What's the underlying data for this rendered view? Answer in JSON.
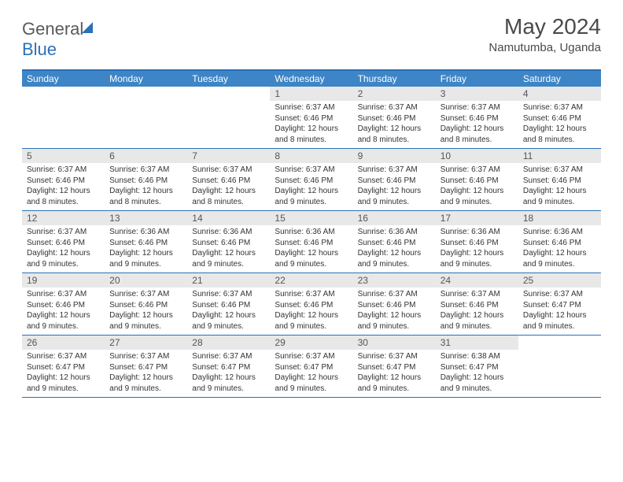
{
  "logo": {
    "text_gray": "General",
    "text_blue": "Blue"
  },
  "header": {
    "month_title": "May 2024",
    "location": "Namutumba, Uganda"
  },
  "colors": {
    "brand_blue": "#2a71b8",
    "header_bar": "#3d85c6",
    "day_num_bg": "#e8e8e8",
    "text": "#333333",
    "muted": "#5a5a5a"
  },
  "weekdays": [
    "Sunday",
    "Monday",
    "Tuesday",
    "Wednesday",
    "Thursday",
    "Friday",
    "Saturday"
  ],
  "weeks": [
    [
      {
        "num": "",
        "lines": [
          "",
          "",
          "",
          ""
        ]
      },
      {
        "num": "",
        "lines": [
          "",
          "",
          "",
          ""
        ]
      },
      {
        "num": "",
        "lines": [
          "",
          "",
          "",
          ""
        ]
      },
      {
        "num": "1",
        "lines": [
          "Sunrise: 6:37 AM",
          "Sunset: 6:46 PM",
          "Daylight: 12 hours",
          "and 8 minutes."
        ]
      },
      {
        "num": "2",
        "lines": [
          "Sunrise: 6:37 AM",
          "Sunset: 6:46 PM",
          "Daylight: 12 hours",
          "and 8 minutes."
        ]
      },
      {
        "num": "3",
        "lines": [
          "Sunrise: 6:37 AM",
          "Sunset: 6:46 PM",
          "Daylight: 12 hours",
          "and 8 minutes."
        ]
      },
      {
        "num": "4",
        "lines": [
          "Sunrise: 6:37 AM",
          "Sunset: 6:46 PM",
          "Daylight: 12 hours",
          "and 8 minutes."
        ]
      }
    ],
    [
      {
        "num": "5",
        "lines": [
          "Sunrise: 6:37 AM",
          "Sunset: 6:46 PM",
          "Daylight: 12 hours",
          "and 8 minutes."
        ]
      },
      {
        "num": "6",
        "lines": [
          "Sunrise: 6:37 AM",
          "Sunset: 6:46 PM",
          "Daylight: 12 hours",
          "and 8 minutes."
        ]
      },
      {
        "num": "7",
        "lines": [
          "Sunrise: 6:37 AM",
          "Sunset: 6:46 PM",
          "Daylight: 12 hours",
          "and 8 minutes."
        ]
      },
      {
        "num": "8",
        "lines": [
          "Sunrise: 6:37 AM",
          "Sunset: 6:46 PM",
          "Daylight: 12 hours",
          "and 9 minutes."
        ]
      },
      {
        "num": "9",
        "lines": [
          "Sunrise: 6:37 AM",
          "Sunset: 6:46 PM",
          "Daylight: 12 hours",
          "and 9 minutes."
        ]
      },
      {
        "num": "10",
        "lines": [
          "Sunrise: 6:37 AM",
          "Sunset: 6:46 PM",
          "Daylight: 12 hours",
          "and 9 minutes."
        ]
      },
      {
        "num": "11",
        "lines": [
          "Sunrise: 6:37 AM",
          "Sunset: 6:46 PM",
          "Daylight: 12 hours",
          "and 9 minutes."
        ]
      }
    ],
    [
      {
        "num": "12",
        "lines": [
          "Sunrise: 6:37 AM",
          "Sunset: 6:46 PM",
          "Daylight: 12 hours",
          "and 9 minutes."
        ]
      },
      {
        "num": "13",
        "lines": [
          "Sunrise: 6:36 AM",
          "Sunset: 6:46 PM",
          "Daylight: 12 hours",
          "and 9 minutes."
        ]
      },
      {
        "num": "14",
        "lines": [
          "Sunrise: 6:36 AM",
          "Sunset: 6:46 PM",
          "Daylight: 12 hours",
          "and 9 minutes."
        ]
      },
      {
        "num": "15",
        "lines": [
          "Sunrise: 6:36 AM",
          "Sunset: 6:46 PM",
          "Daylight: 12 hours",
          "and 9 minutes."
        ]
      },
      {
        "num": "16",
        "lines": [
          "Sunrise: 6:36 AM",
          "Sunset: 6:46 PM",
          "Daylight: 12 hours",
          "and 9 minutes."
        ]
      },
      {
        "num": "17",
        "lines": [
          "Sunrise: 6:36 AM",
          "Sunset: 6:46 PM",
          "Daylight: 12 hours",
          "and 9 minutes."
        ]
      },
      {
        "num": "18",
        "lines": [
          "Sunrise: 6:36 AM",
          "Sunset: 6:46 PM",
          "Daylight: 12 hours",
          "and 9 minutes."
        ]
      }
    ],
    [
      {
        "num": "19",
        "lines": [
          "Sunrise: 6:37 AM",
          "Sunset: 6:46 PM",
          "Daylight: 12 hours",
          "and 9 minutes."
        ]
      },
      {
        "num": "20",
        "lines": [
          "Sunrise: 6:37 AM",
          "Sunset: 6:46 PM",
          "Daylight: 12 hours",
          "and 9 minutes."
        ]
      },
      {
        "num": "21",
        "lines": [
          "Sunrise: 6:37 AM",
          "Sunset: 6:46 PM",
          "Daylight: 12 hours",
          "and 9 minutes."
        ]
      },
      {
        "num": "22",
        "lines": [
          "Sunrise: 6:37 AM",
          "Sunset: 6:46 PM",
          "Daylight: 12 hours",
          "and 9 minutes."
        ]
      },
      {
        "num": "23",
        "lines": [
          "Sunrise: 6:37 AM",
          "Sunset: 6:46 PM",
          "Daylight: 12 hours",
          "and 9 minutes."
        ]
      },
      {
        "num": "24",
        "lines": [
          "Sunrise: 6:37 AM",
          "Sunset: 6:46 PM",
          "Daylight: 12 hours",
          "and 9 minutes."
        ]
      },
      {
        "num": "25",
        "lines": [
          "Sunrise: 6:37 AM",
          "Sunset: 6:47 PM",
          "Daylight: 12 hours",
          "and 9 minutes."
        ]
      }
    ],
    [
      {
        "num": "26",
        "lines": [
          "Sunrise: 6:37 AM",
          "Sunset: 6:47 PM",
          "Daylight: 12 hours",
          "and 9 minutes."
        ]
      },
      {
        "num": "27",
        "lines": [
          "Sunrise: 6:37 AM",
          "Sunset: 6:47 PM",
          "Daylight: 12 hours",
          "and 9 minutes."
        ]
      },
      {
        "num": "28",
        "lines": [
          "Sunrise: 6:37 AM",
          "Sunset: 6:47 PM",
          "Daylight: 12 hours",
          "and 9 minutes."
        ]
      },
      {
        "num": "29",
        "lines": [
          "Sunrise: 6:37 AM",
          "Sunset: 6:47 PM",
          "Daylight: 12 hours",
          "and 9 minutes."
        ]
      },
      {
        "num": "30",
        "lines": [
          "Sunrise: 6:37 AM",
          "Sunset: 6:47 PM",
          "Daylight: 12 hours",
          "and 9 minutes."
        ]
      },
      {
        "num": "31",
        "lines": [
          "Sunrise: 6:38 AM",
          "Sunset: 6:47 PM",
          "Daylight: 12 hours",
          "and 9 minutes."
        ]
      },
      {
        "num": "",
        "lines": [
          "",
          "",
          "",
          ""
        ]
      }
    ]
  ]
}
